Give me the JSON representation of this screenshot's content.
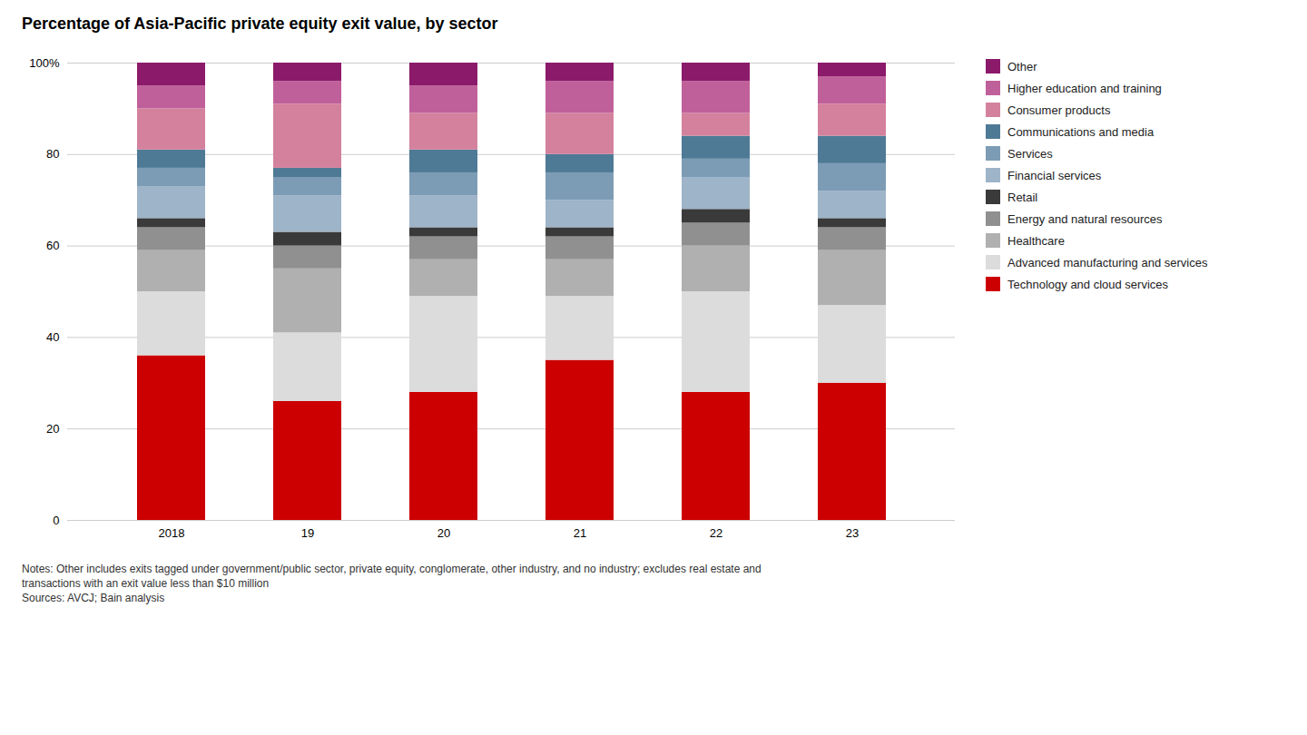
{
  "chart_data": {
    "type": "bar",
    "stacked": true,
    "title": "Percentage of Asia-Pacific private equity exit value, by sector",
    "categories": [
      "2018",
      "19",
      "20",
      "21",
      "22",
      "23"
    ],
    "series": [
      {
        "name": "Technology and cloud services",
        "color": "#CC0000",
        "values": [
          36,
          26,
          28,
          35,
          28,
          30
        ]
      },
      {
        "name": "Advanced manufacturing and services",
        "color": "#DCDCDC",
        "values": [
          14,
          15,
          21,
          14,
          22,
          17
        ]
      },
      {
        "name": "Healthcare",
        "color": "#B0B0B0",
        "values": [
          9,
          14,
          8,
          8,
          10,
          12
        ]
      },
      {
        "name": "Energy and natural resources",
        "color": "#909090",
        "values": [
          5,
          5,
          5,
          5,
          5,
          5
        ]
      },
      {
        "name": "Retail",
        "color": "#3A3A3A",
        "values": [
          2,
          3,
          2,
          2,
          3,
          2
        ]
      },
      {
        "name": "Financial services",
        "color": "#9EB4C8",
        "values": [
          7,
          8,
          7,
          6,
          7,
          6
        ]
      },
      {
        "name": "Services",
        "color": "#7C9CB5",
        "values": [
          4,
          4,
          5,
          6,
          4,
          6
        ]
      },
      {
        "name": "Communications and media",
        "color": "#4E7A96",
        "values": [
          4,
          2,
          5,
          4,
          5,
          6
        ]
      },
      {
        "name": "Consumer products",
        "color": "#D4819E",
        "values": [
          9,
          14,
          8,
          9,
          5,
          7
        ]
      },
      {
        "name": "Higher education and training",
        "color": "#C0609A",
        "values": [
          5,
          5,
          6,
          7,
          7,
          6
        ]
      },
      {
        "name": "Other",
        "color": "#8B1A6B",
        "values": [
          5,
          4,
          5,
          4,
          4,
          3
        ]
      }
    ],
    "ylim": [
      0,
      100
    ],
    "yticks": [
      0,
      20,
      40,
      60,
      80,
      {
        "value": 100,
        "label": "100%"
      }
    ],
    "grid": true,
    "legend": "right",
    "annotations": [
      "Notes: Other includes exits tagged under government/public sector, private equity, conglomerate, other industry, and no industry; excludes real estate and\ntransactions with an exit value less than $10 million\nSources: AVCJ; Bain analysis"
    ]
  }
}
